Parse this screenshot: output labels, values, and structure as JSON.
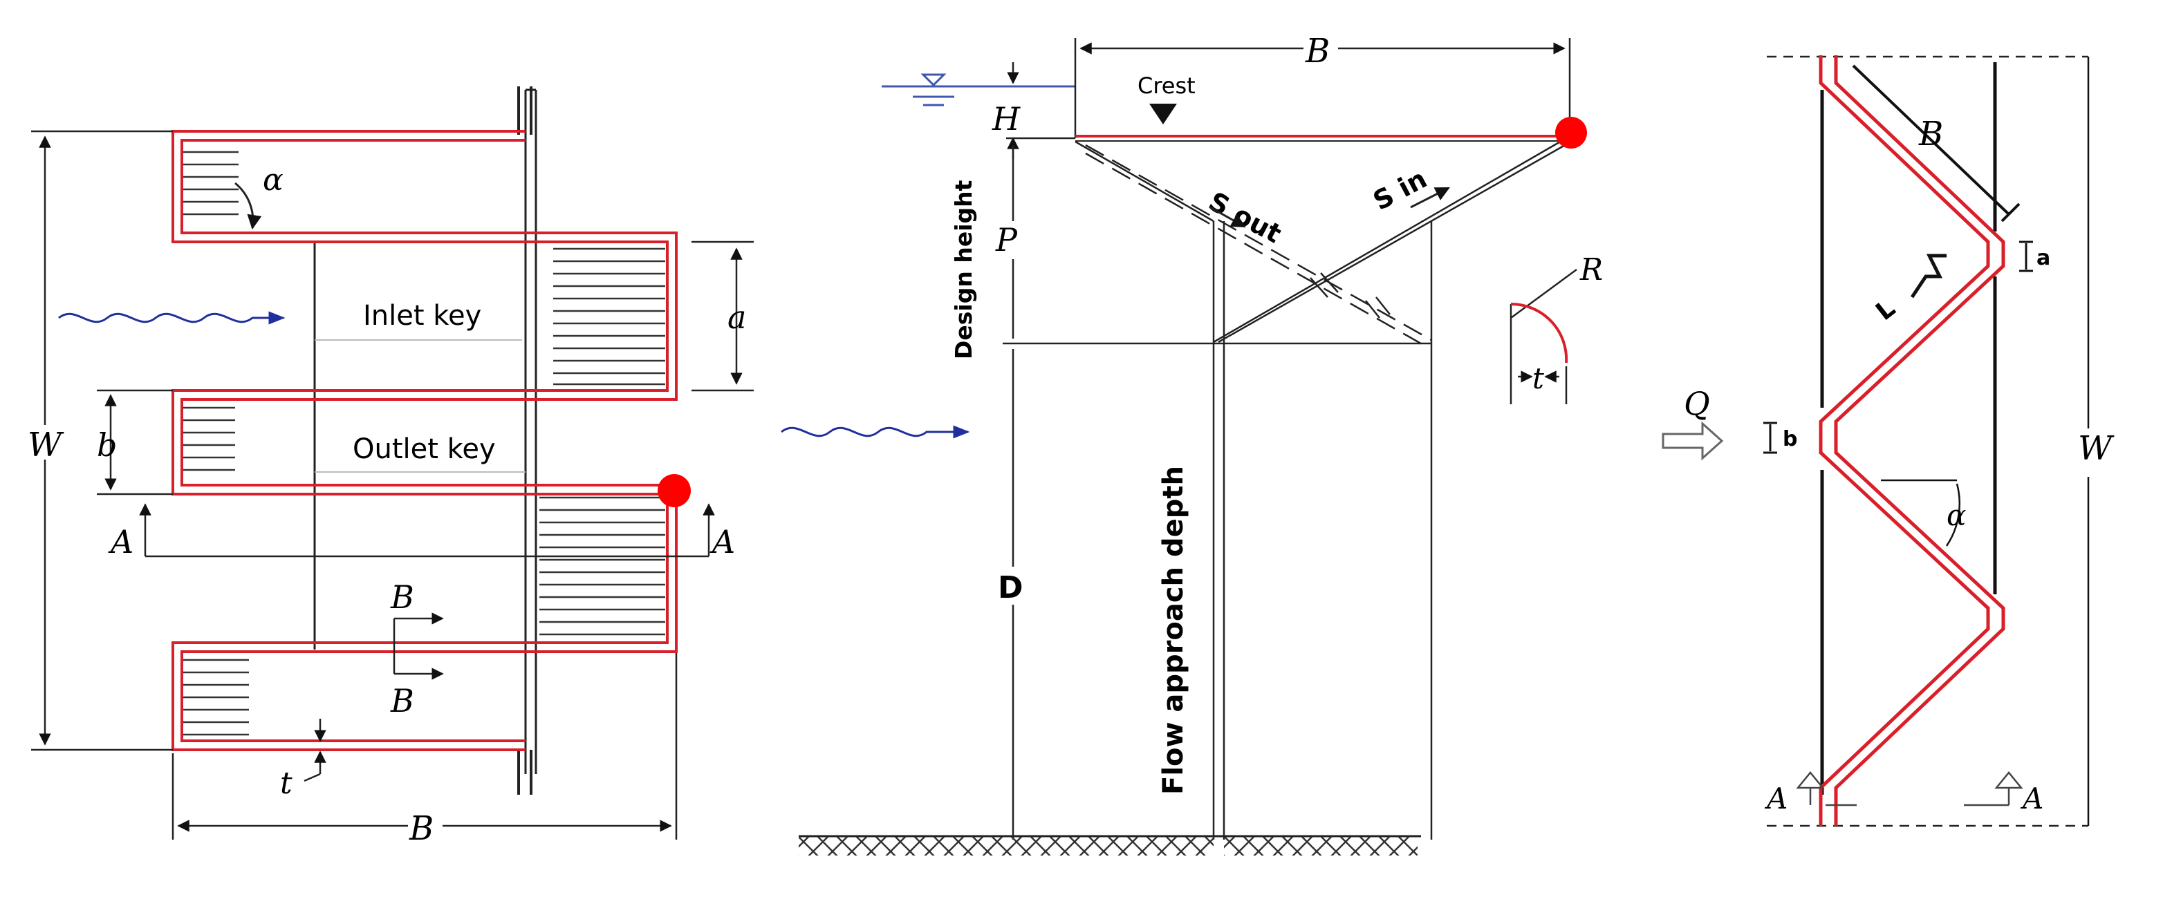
{
  "colors": {
    "wall": "#d9202a",
    "flow": "#1f2f9e",
    "marker": "#ff0000",
    "line": "#111111",
    "hatch": "#333333",
    "hidden": "#3f57b0"
  },
  "left_plan": {
    "label_alpha": "α",
    "label_inlet_key": "Inlet key",
    "label_outlet_key": "Outlet key",
    "label_a": "a",
    "label_b": "b",
    "label_W": "W",
    "label_A_left": "A",
    "label_A_right": "A",
    "label_B_top": "B",
    "label_B_bottom": "B",
    "label_t": "t",
    "label_B_dim": "B"
  },
  "middle_section": {
    "label_B": "B",
    "label_crest": "Crest",
    "label_H": "H",
    "label_design_height": "Design height",
    "label_P": "P",
    "label_S_out": "S out",
    "label_S_in": "S in",
    "label_R": "R",
    "label_t": "t",
    "label_D": "D",
    "label_flow_depth": "Flow approach depth"
  },
  "right_plan": {
    "label_B": "B",
    "label_a": "a",
    "label_L": "L",
    "label_Q": "Q",
    "label_b": "b",
    "label_W": "W",
    "label_alpha": "α",
    "label_A_left": "A",
    "label_A_right": "A"
  }
}
